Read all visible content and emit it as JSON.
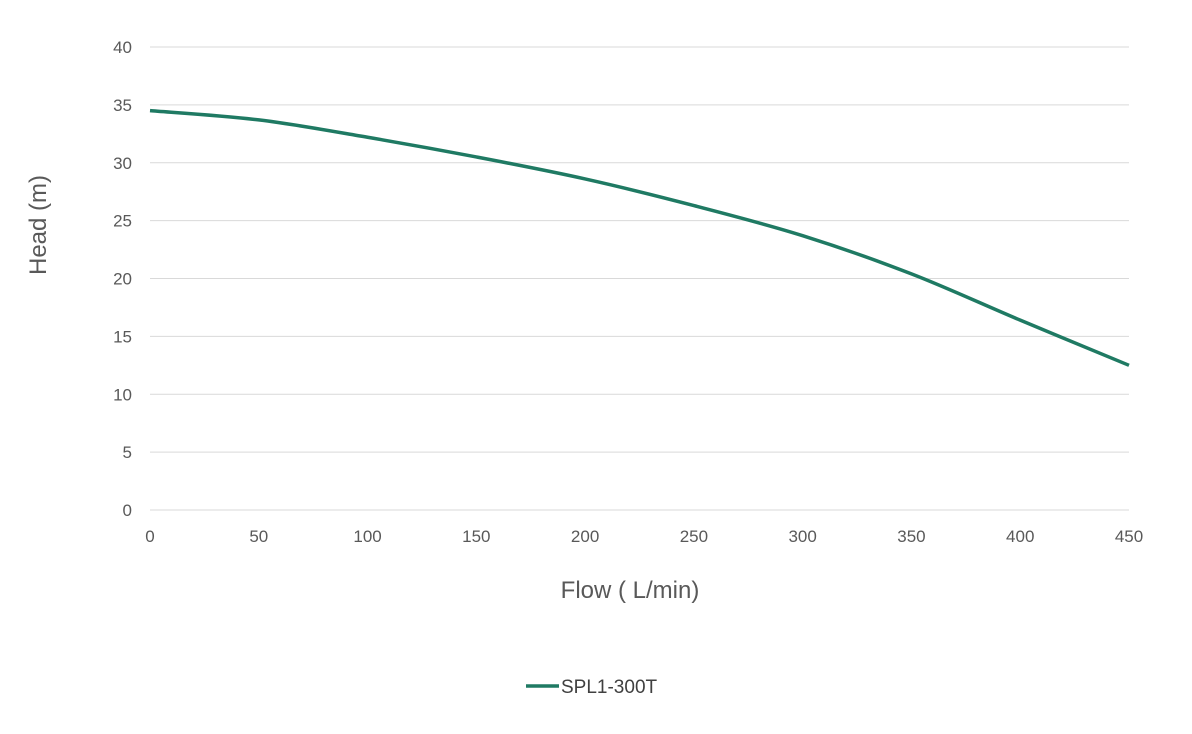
{
  "chart_data": {
    "type": "line",
    "title": "",
    "xlabel": "Flow ( L/min)",
    "ylabel": "Head (m)",
    "xlim": [
      0,
      450
    ],
    "ylim": [
      0,
      40
    ],
    "xticks": [
      0,
      50,
      100,
      150,
      200,
      250,
      300,
      350,
      400,
      450
    ],
    "yticks": [
      0,
      5,
      10,
      15,
      20,
      25,
      30,
      35,
      40
    ],
    "grid": "horizontal",
    "legend_position": "bottom",
    "series": [
      {
        "name": "SPL1-300T",
        "color": "#1f7a63",
        "x": [
          0,
          50,
          100,
          150,
          200,
          250,
          300,
          350,
          400,
          450
        ],
        "y": [
          34.5,
          33.7,
          32.2,
          30.5,
          28.6,
          26.3,
          23.7,
          20.4,
          16.4,
          12.5
        ]
      }
    ]
  }
}
